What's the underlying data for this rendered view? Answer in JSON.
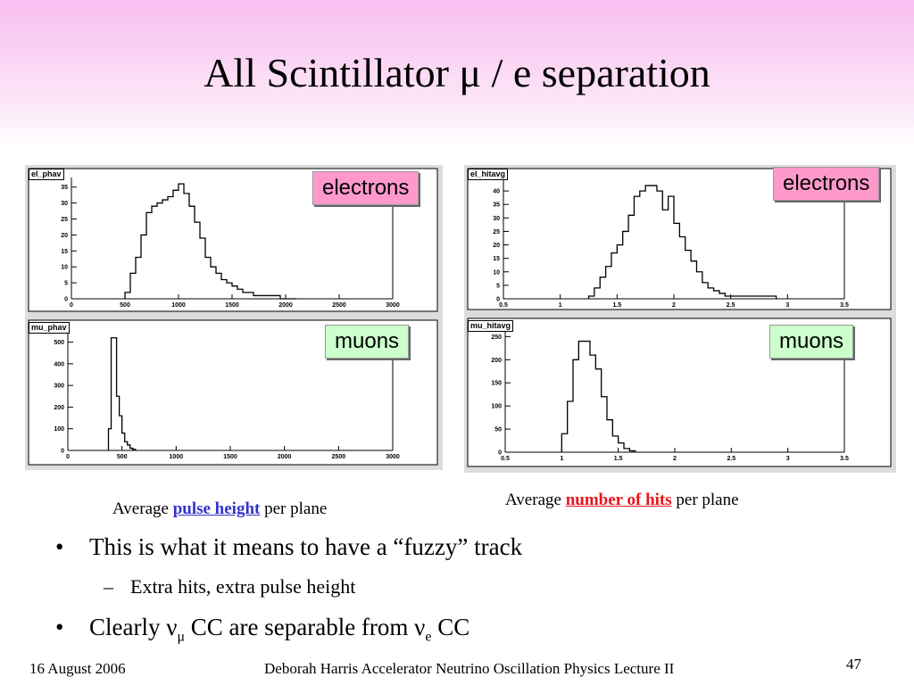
{
  "slide": {
    "title": "All Scintillator μ / e separation",
    "captions": {
      "left_prefix": "Average ",
      "left_highlight": "pulse height",
      "left_suffix": " per plane",
      "right_prefix": "Average ",
      "right_highlight": "number of hits",
      "right_suffix": " per plane",
      "left_highlight_color": "#3333cc",
      "right_highlight_color": "#e8141b"
    },
    "bullets": [
      {
        "marker": "•",
        "text": "This is what it means to have a “fuzzy” track"
      },
      {
        "marker": "–",
        "text": "Extra hits, extra pulse height"
      },
      {
        "marker": "•",
        "pre": "Clearly ν",
        "sub1": "μ",
        "mid": " CC are separable from ν",
        "sub2": "e",
        "post": " CC"
      }
    ],
    "footer": {
      "date": "16 August 2006",
      "author": "Deborah Harris  Accelerator Neutrino Oscillation Physics Lecture II",
      "page": "47"
    },
    "tags": {
      "electrons": "electrons",
      "muons": "muons"
    },
    "colors": {
      "electrons_tag": "#ff99cc",
      "muons_tag": "#ccffcc",
      "title_band": "#f7bff0"
    }
  },
  "chart_data": [
    {
      "type": "bar",
      "name": "el_phav",
      "tag": "electrons",
      "xticks": [
        "0",
        "500",
        "1000",
        "1500",
        "2000",
        "2500",
        "3000"
      ],
      "yticks": [
        "0",
        "5",
        "10",
        "15",
        "20",
        "25",
        "30",
        "35"
      ],
      "xlim": [
        0,
        3000
      ],
      "ylim": [
        0,
        38
      ],
      "bin_width": 50,
      "x_start": 500,
      "values": [
        2,
        8,
        13,
        20,
        27,
        29,
        30,
        31,
        32,
        34,
        36,
        33,
        29,
        24,
        19,
        13,
        10,
        8,
        6,
        5,
        4,
        3,
        2,
        2,
        1,
        1,
        1,
        1,
        1,
        0,
        0,
        0
      ]
    },
    {
      "type": "bar",
      "name": "el_hitavg",
      "tag": "electrons",
      "xticks": [
        "0.5",
        "1",
        "1.5",
        "2",
        "2.5",
        "3",
        "3.5"
      ],
      "yticks": [
        "0",
        "5",
        "10",
        "15",
        "20",
        "25",
        "30",
        "35",
        "40"
      ],
      "xlim": [
        0.5,
        3.5
      ],
      "ylim": [
        0,
        45
      ],
      "bin_width": 0.05,
      "x_start": 1.25,
      "values": [
        1,
        4,
        8,
        12,
        17,
        20,
        25,
        31,
        38,
        40,
        42,
        42,
        40,
        33,
        38,
        28,
        23,
        18,
        14,
        10,
        6,
        4,
        3,
        2,
        1,
        1,
        1,
        1,
        1,
        1,
        1,
        1,
        1
      ]
    },
    {
      "type": "bar",
      "name": "mu_phav",
      "tag": "muons",
      "xticks": [
        "0",
        "500",
        "1000",
        "1500",
        "2000",
        "2500",
        "3000"
      ],
      "yticks": [
        "0",
        "100",
        "200",
        "300",
        "400",
        "500"
      ],
      "xlim": [
        0,
        3000
      ],
      "ylim": [
        0,
        560
      ],
      "bin_width": 25,
      "x_start": 375,
      "values": [
        100,
        520,
        520,
        250,
        160,
        80,
        40,
        25,
        10,
        5
      ]
    },
    {
      "type": "bar",
      "name": "mu_hitavg",
      "tag": "muons",
      "xticks": [
        "0.5",
        "1",
        "1.5",
        "2",
        "2.5",
        "3",
        "3.5"
      ],
      "yticks": [
        "0",
        "50",
        "100",
        "150",
        "200",
        "250"
      ],
      "xlim": [
        0.5,
        3.5
      ],
      "ylim": [
        0,
        270
      ],
      "bin_width": 0.05,
      "x_start": 1.0,
      "values": [
        40,
        110,
        200,
        240,
        240,
        210,
        180,
        120,
        70,
        35,
        20,
        8,
        3
      ]
    }
  ]
}
